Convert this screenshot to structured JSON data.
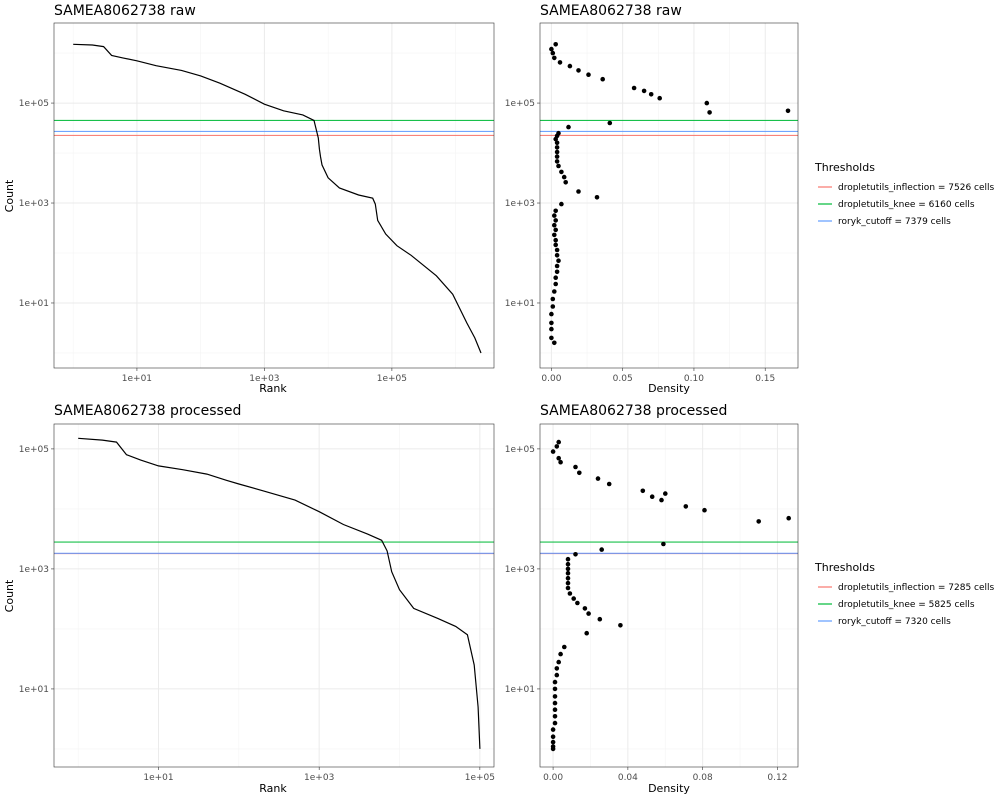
{
  "chart_data": [
    {
      "id": "raw-rank",
      "type": "line",
      "title": "SAMEA8062738 raw",
      "xlabel": "Rank",
      "ylabel": "Count",
      "x_scale": "log10",
      "y_scale": "log10",
      "xlim": [
        0.5,
        4000000
      ],
      "ylim": [
        0.5,
        4000000
      ],
      "x_ticks": [
        {
          "value": 10,
          "label": "1e+01"
        },
        {
          "value": 1000,
          "label": "1e+03"
        },
        {
          "value": 100000,
          "label": "1e+05"
        }
      ],
      "y_ticks": [
        {
          "value": 10,
          "label": "1e+01"
        },
        {
          "value": 1000,
          "label": "1e+03"
        },
        {
          "value": 100000,
          "label": "1e+05"
        }
      ],
      "series": [
        {
          "name": "rank-count",
          "color": "#000000",
          "x": [
            1,
            2,
            3,
            4,
            6,
            10,
            20,
            50,
            100,
            200,
            500,
            1000,
            2000,
            4000,
            6000,
            7000,
            7300,
            7600,
            8000,
            10000,
            15000,
            30000,
            50000,
            55000,
            60000,
            80000,
            120000,
            200000,
            500000,
            900000,
            1500000,
            2000000,
            2500000
          ],
          "y": [
            1500000,
            1450000,
            1350000,
            900000,
            800000,
            700000,
            560000,
            450000,
            350000,
            250000,
            150000,
            95000,
            70000,
            58000,
            45000,
            20000,
            12000,
            8500,
            5800,
            3200,
            2000,
            1450,
            1250,
            950,
            450,
            240,
            140,
            90,
            35,
            15,
            4,
            2,
            1
          ]
        }
      ],
      "hlines": [
        {
          "name": "dropletutils_inflection",
          "value": 22500,
          "color": "#F8766D"
        },
        {
          "name": "dropletutils_knee",
          "value": 45000,
          "color": "#00BA38"
        },
        {
          "name": "roryk_cutoff",
          "value": 27000,
          "color": "#619CFF"
        }
      ]
    },
    {
      "id": "raw-density",
      "type": "scatter",
      "title": "SAMEA8062738 raw",
      "xlabel": "Density",
      "ylabel": "",
      "x_scale": "linear",
      "y_scale": "log10",
      "xlim": [
        -0.008,
        0.173
      ],
      "ylim": [
        0.5,
        4000000
      ],
      "x_ticks": [
        {
          "value": 0.0,
          "label": "0.00"
        },
        {
          "value": 0.05,
          "label": "0.05"
        },
        {
          "value": 0.1,
          "label": "0.10"
        },
        {
          "value": 0.15,
          "label": "0.15"
        }
      ],
      "y_ticks": [
        {
          "value": 10,
          "label": "1e+01"
        },
        {
          "value": 1000,
          "label": "1e+03"
        },
        {
          "value": 100000,
          "label": "1e+05"
        }
      ],
      "points": {
        "x": [
          0.003,
          0.0,
          0.001,
          0.002,
          0.006,
          0.013,
          0.019,
          0.026,
          0.036,
          0.058,
          0.065,
          0.07,
          0.076,
          0.109,
          0.111,
          0.166,
          0.012,
          0.041,
          0.005,
          0.004,
          0.003,
          0.004,
          0.004,
          0.004,
          0.004,
          0.004,
          0.005,
          0.007,
          0.009,
          0.01,
          0.019,
          0.032,
          0.007,
          0.003,
          0.002,
          0.003,
          0.002,
          0.003,
          0.002,
          0.003,
          0.003,
          0.004,
          0.004,
          0.005,
          0.004,
          0.004,
          0.003,
          0.003,
          0.002,
          0.001,
          0.001,
          0.0,
          0.0,
          0.0,
          0.0,
          0.002
        ],
        "y": [
          1500000,
          1200000,
          1000000,
          800000,
          650000,
          550000,
          450000,
          370000,
          300000,
          200000,
          175000,
          150000,
          125000,
          100000,
          65000,
          70000,
          33000,
          40000,
          25000,
          22000,
          19000,
          16000,
          13000,
          10500,
          8500,
          6800,
          5500,
          4200,
          3300,
          2600,
          1700,
          1300,
          950,
          700,
          560,
          450,
          360,
          290,
          230,
          180,
          145,
          115,
          90,
          70,
          55,
          42,
          32,
          24,
          17,
          12,
          8.5,
          6,
          4,
          3,
          2,
          1.6
        ]
      },
      "hlines": [
        {
          "name": "dropletutils_inflection",
          "value": 22500,
          "color": "#F8766D"
        },
        {
          "name": "dropletutils_knee",
          "value": 45000,
          "color": "#00BA38"
        },
        {
          "name": "roryk_cutoff",
          "value": 27000,
          "color": "#619CFF"
        }
      ]
    },
    {
      "id": "processed-rank",
      "type": "line",
      "title": "SAMEA8062738 processed",
      "xlabel": "Rank",
      "ylabel": "Count",
      "x_scale": "log10",
      "y_scale": "log10",
      "xlim": [
        0.5,
        150000
      ],
      "ylim": [
        0.5,
        260000
      ],
      "x_ticks": [
        {
          "value": 10,
          "label": "1e+01"
        },
        {
          "value": 1000,
          "label": "1e+03"
        },
        {
          "value": 100000,
          "label": "1e+05"
        }
      ],
      "y_ticks": [
        {
          "value": 10,
          "label": "1e+01"
        },
        {
          "value": 1000,
          "label": "1e+03"
        },
        {
          "value": 100000,
          "label": "1e+05"
        }
      ],
      "series": [
        {
          "name": "rank-count",
          "color": "#000000",
          "x": [
            1,
            2,
            3,
            4,
            6,
            10,
            20,
            40,
            70,
            100,
            200,
            500,
            1000,
            2000,
            4000,
            6000,
            7000,
            8000,
            10000,
            15000,
            30000,
            50000,
            70000,
            85000,
            95000,
            100000
          ],
          "y": [
            150000,
            140000,
            130000,
            80000,
            65000,
            52000,
            45000,
            38000,
            30000,
            26000,
            20000,
            14000,
            9000,
            5500,
            3800,
            3000,
            2000,
            900,
            450,
            220,
            150,
            110,
            80,
            25,
            5,
            1
          ]
        }
      ],
      "hlines": [
        {
          "name": "dropletutils_inflection",
          "value": 1800,
          "color": "#F8766D"
        },
        {
          "name": "dropletutils_knee",
          "value": 2800,
          "color": "#00BA38"
        },
        {
          "name": "roryk_cutoff",
          "value": 1820,
          "color": "#619CFF"
        }
      ]
    },
    {
      "id": "processed-density",
      "type": "scatter",
      "title": "SAMEA8062738 processed",
      "xlabel": "Density",
      "ylabel": "",
      "x_scale": "linear",
      "y_scale": "log10",
      "xlim": [
        -0.007,
        0.131
      ],
      "ylim": [
        0.5,
        260000
      ],
      "x_ticks": [
        {
          "value": 0.0,
          "label": "0.00"
        },
        {
          "value": 0.04,
          "label": "0.04"
        },
        {
          "value": 0.08,
          "label": "0.08"
        },
        {
          "value": 0.12,
          "label": "0.12"
        }
      ],
      "y_ticks": [
        {
          "value": 10,
          "label": "1e+01"
        },
        {
          "value": 1000,
          "label": "1e+03"
        },
        {
          "value": 100000,
          "label": "1e+05"
        }
      ],
      "points": {
        "x": [
          0.003,
          0.002,
          0.0,
          0.003,
          0.004,
          0.012,
          0.014,
          0.024,
          0.03,
          0.048,
          0.053,
          0.058,
          0.06,
          0.071,
          0.081,
          0.11,
          0.126,
          0.059,
          0.026,
          0.012,
          0.008,
          0.008,
          0.008,
          0.008,
          0.008,
          0.008,
          0.008,
          0.009,
          0.011,
          0.013,
          0.017,
          0.019,
          0.025,
          0.036,
          0.018,
          0.006,
          0.004,
          0.003,
          0.002,
          0.002,
          0.001,
          0.001,
          0.001,
          0.001,
          0.001,
          0.001,
          0.001,
          0.0,
          0.0,
          0.0,
          0.0,
          0.0
        ],
        "y": [
          130000,
          110000,
          90000,
          70000,
          60000,
          50000,
          40000,
          32000,
          26000,
          20000,
          16000,
          14000,
          18000,
          11000,
          9500,
          6200,
          7000,
          2600,
          2100,
          1750,
          1450,
          1200,
          1000,
          850,
          700,
          580,
          480,
          390,
          320,
          270,
          220,
          180,
          145,
          115,
          85,
          50,
          38,
          28,
          22,
          17,
          13,
          10,
          7.5,
          5.8,
          4.5,
          3.5,
          2.7,
          2.1,
          1.6,
          1.3,
          1.1,
          1.0
        ]
      },
      "hlines": [
        {
          "name": "dropletutils_inflection",
          "value": 1800,
          "color": "#F8766D"
        },
        {
          "name": "dropletutils_knee",
          "value": 2800,
          "color": "#00BA38"
        },
        {
          "name": "roryk_cutoff",
          "value": 1820,
          "color": "#619CFF"
        }
      ]
    }
  ],
  "legends": [
    {
      "id": "raw",
      "title": "Thresholds",
      "entries": [
        {
          "label": "dropletutils_inflection = 7526 cells",
          "color": "#F8766D"
        },
        {
          "label": "dropletutils_knee = 6160 cells",
          "color": "#00BA38"
        },
        {
          "label": "roryk_cutoff = 7379 cells",
          "color": "#619CFF"
        }
      ]
    },
    {
      "id": "processed",
      "title": "Thresholds",
      "entries": [
        {
          "label": "dropletutils_inflection = 7285 cells",
          "color": "#F8766D"
        },
        {
          "label": "dropletutils_knee = 5825 cells",
          "color": "#00BA38"
        },
        {
          "label": "roryk_cutoff = 7320 cells",
          "color": "#619CFF"
        }
      ]
    }
  ]
}
